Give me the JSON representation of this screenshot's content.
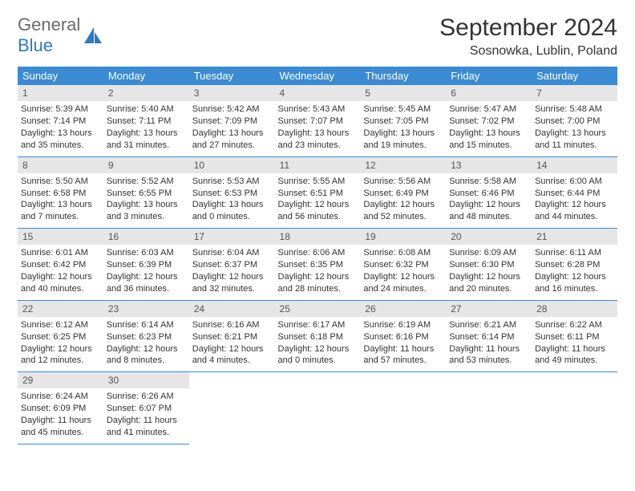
{
  "logo": {
    "text1": "General",
    "text2": "Blue"
  },
  "title": "September 2024",
  "location": "Sosnowka, Lublin, Poland",
  "colors": {
    "header_bg": "#3b8bd4",
    "header_text": "#ffffff",
    "daynum_bg": "#e6e6e6",
    "border": "#3b8bd4",
    "logo_blue": "#2f78c4",
    "body_text": "#333333",
    "page_bg": "#ffffff"
  },
  "weekdays": [
    "Sunday",
    "Monday",
    "Tuesday",
    "Wednesday",
    "Thursday",
    "Friday",
    "Saturday"
  ],
  "days": [
    {
      "n": "1",
      "sr": "5:39 AM",
      "ss": "7:14 PM",
      "dl": "13 hours and 35 minutes."
    },
    {
      "n": "2",
      "sr": "5:40 AM",
      "ss": "7:11 PM",
      "dl": "13 hours and 31 minutes."
    },
    {
      "n": "3",
      "sr": "5:42 AM",
      "ss": "7:09 PM",
      "dl": "13 hours and 27 minutes."
    },
    {
      "n": "4",
      "sr": "5:43 AM",
      "ss": "7:07 PM",
      "dl": "13 hours and 23 minutes."
    },
    {
      "n": "5",
      "sr": "5:45 AM",
      "ss": "7:05 PM",
      "dl": "13 hours and 19 minutes."
    },
    {
      "n": "6",
      "sr": "5:47 AM",
      "ss": "7:02 PM",
      "dl": "13 hours and 15 minutes."
    },
    {
      "n": "7",
      "sr": "5:48 AM",
      "ss": "7:00 PM",
      "dl": "13 hours and 11 minutes."
    },
    {
      "n": "8",
      "sr": "5:50 AM",
      "ss": "6:58 PM",
      "dl": "13 hours and 7 minutes."
    },
    {
      "n": "9",
      "sr": "5:52 AM",
      "ss": "6:55 PM",
      "dl": "13 hours and 3 minutes."
    },
    {
      "n": "10",
      "sr": "5:53 AM",
      "ss": "6:53 PM",
      "dl": "13 hours and 0 minutes."
    },
    {
      "n": "11",
      "sr": "5:55 AM",
      "ss": "6:51 PM",
      "dl": "12 hours and 56 minutes."
    },
    {
      "n": "12",
      "sr": "5:56 AM",
      "ss": "6:49 PM",
      "dl": "12 hours and 52 minutes."
    },
    {
      "n": "13",
      "sr": "5:58 AM",
      "ss": "6:46 PM",
      "dl": "12 hours and 48 minutes."
    },
    {
      "n": "14",
      "sr": "6:00 AM",
      "ss": "6:44 PM",
      "dl": "12 hours and 44 minutes."
    },
    {
      "n": "15",
      "sr": "6:01 AM",
      "ss": "6:42 PM",
      "dl": "12 hours and 40 minutes."
    },
    {
      "n": "16",
      "sr": "6:03 AM",
      "ss": "6:39 PM",
      "dl": "12 hours and 36 minutes."
    },
    {
      "n": "17",
      "sr": "6:04 AM",
      "ss": "6:37 PM",
      "dl": "12 hours and 32 minutes."
    },
    {
      "n": "18",
      "sr": "6:06 AM",
      "ss": "6:35 PM",
      "dl": "12 hours and 28 minutes."
    },
    {
      "n": "19",
      "sr": "6:08 AM",
      "ss": "6:32 PM",
      "dl": "12 hours and 24 minutes."
    },
    {
      "n": "20",
      "sr": "6:09 AM",
      "ss": "6:30 PM",
      "dl": "12 hours and 20 minutes."
    },
    {
      "n": "21",
      "sr": "6:11 AM",
      "ss": "6:28 PM",
      "dl": "12 hours and 16 minutes."
    },
    {
      "n": "22",
      "sr": "6:12 AM",
      "ss": "6:25 PM",
      "dl": "12 hours and 12 minutes."
    },
    {
      "n": "23",
      "sr": "6:14 AM",
      "ss": "6:23 PM",
      "dl": "12 hours and 8 minutes."
    },
    {
      "n": "24",
      "sr": "6:16 AM",
      "ss": "6:21 PM",
      "dl": "12 hours and 4 minutes."
    },
    {
      "n": "25",
      "sr": "6:17 AM",
      "ss": "6:18 PM",
      "dl": "12 hours and 0 minutes."
    },
    {
      "n": "26",
      "sr": "6:19 AM",
      "ss": "6:16 PM",
      "dl": "11 hours and 57 minutes."
    },
    {
      "n": "27",
      "sr": "6:21 AM",
      "ss": "6:14 PM",
      "dl": "11 hours and 53 minutes."
    },
    {
      "n": "28",
      "sr": "6:22 AM",
      "ss": "6:11 PM",
      "dl": "11 hours and 49 minutes."
    },
    {
      "n": "29",
      "sr": "6:24 AM",
      "ss": "6:09 PM",
      "dl": "11 hours and 45 minutes."
    },
    {
      "n": "30",
      "sr": "6:26 AM",
      "ss": "6:07 PM",
      "dl": "11 hours and 41 minutes."
    }
  ],
  "labels": {
    "sunrise": "Sunrise:",
    "sunset": "Sunset:",
    "daylight": "Daylight:"
  }
}
